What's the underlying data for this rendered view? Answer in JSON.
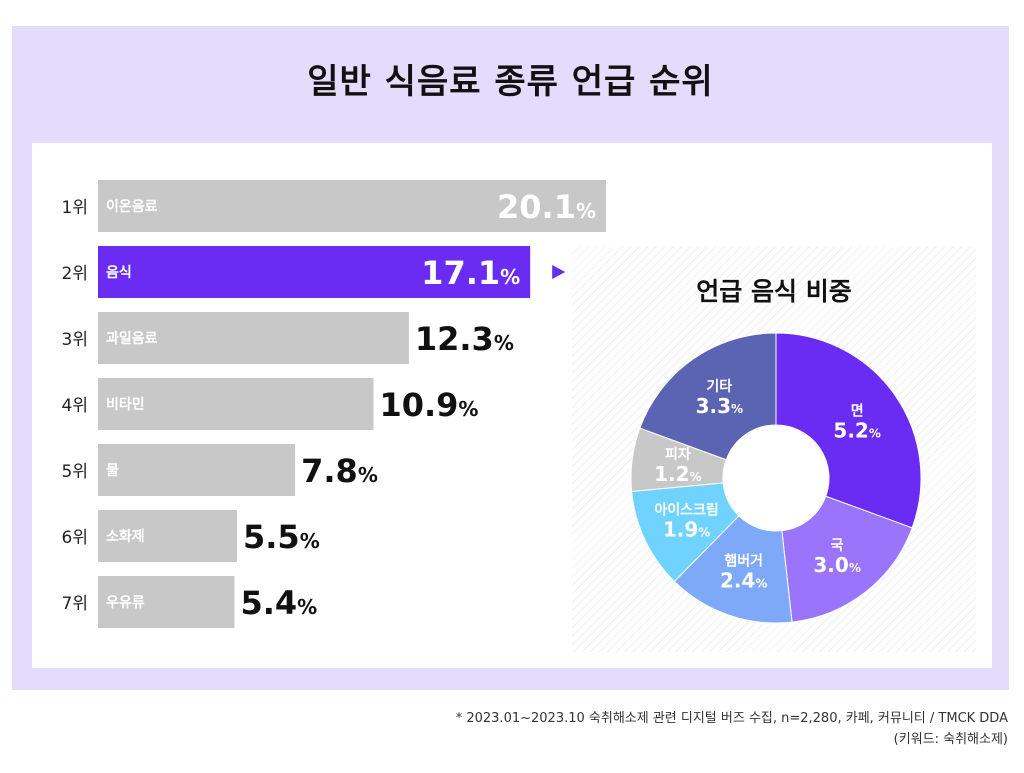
{
  "chart_data": [
    {
      "type": "bar",
      "orientation": "horizontal",
      "title": "일반 식음료 종류 언급 순위",
      "rank_unit": "위",
      "ranks": [
        "1",
        "2",
        "3",
        "4",
        "5",
        "6",
        "7"
      ],
      "categories": [
        "이온음료",
        "음식",
        "과일음료",
        "비타민",
        "물",
        "소화제",
        "우유류"
      ],
      "values": [
        20.1,
        17.1,
        12.3,
        10.9,
        7.8,
        5.5,
        5.4
      ],
      "value_unit": "%",
      "highlight_index": 1,
      "colors": {
        "bar": "#c8c8c8",
        "highlight": "#6a2cf2",
        "pointer": "#6a2cf2"
      }
    },
    {
      "type": "pie",
      "style": "donut",
      "title": "언급 음식 비중",
      "labels": [
        "면",
        "국",
        "햄버거",
        "아이스크림",
        "피자",
        "기타"
      ],
      "values": [
        5.2,
        3.0,
        2.4,
        1.9,
        1.2,
        3.3
      ],
      "value_unit": "%",
      "colors": [
        "#6a2cf2",
        "#9a74fb",
        "#7ea9f9",
        "#70d3ff",
        "#c8c8c8",
        "#5b64b3"
      ]
    }
  ],
  "footnote": {
    "line1": "* 2023.01~2023.10 숙취해소제 관련 디지털 버즈 수집, n=2,280, 카페, 커뮤니티 / TMCK DDA",
    "line2": "(키워드: 숙취해소제)"
  }
}
